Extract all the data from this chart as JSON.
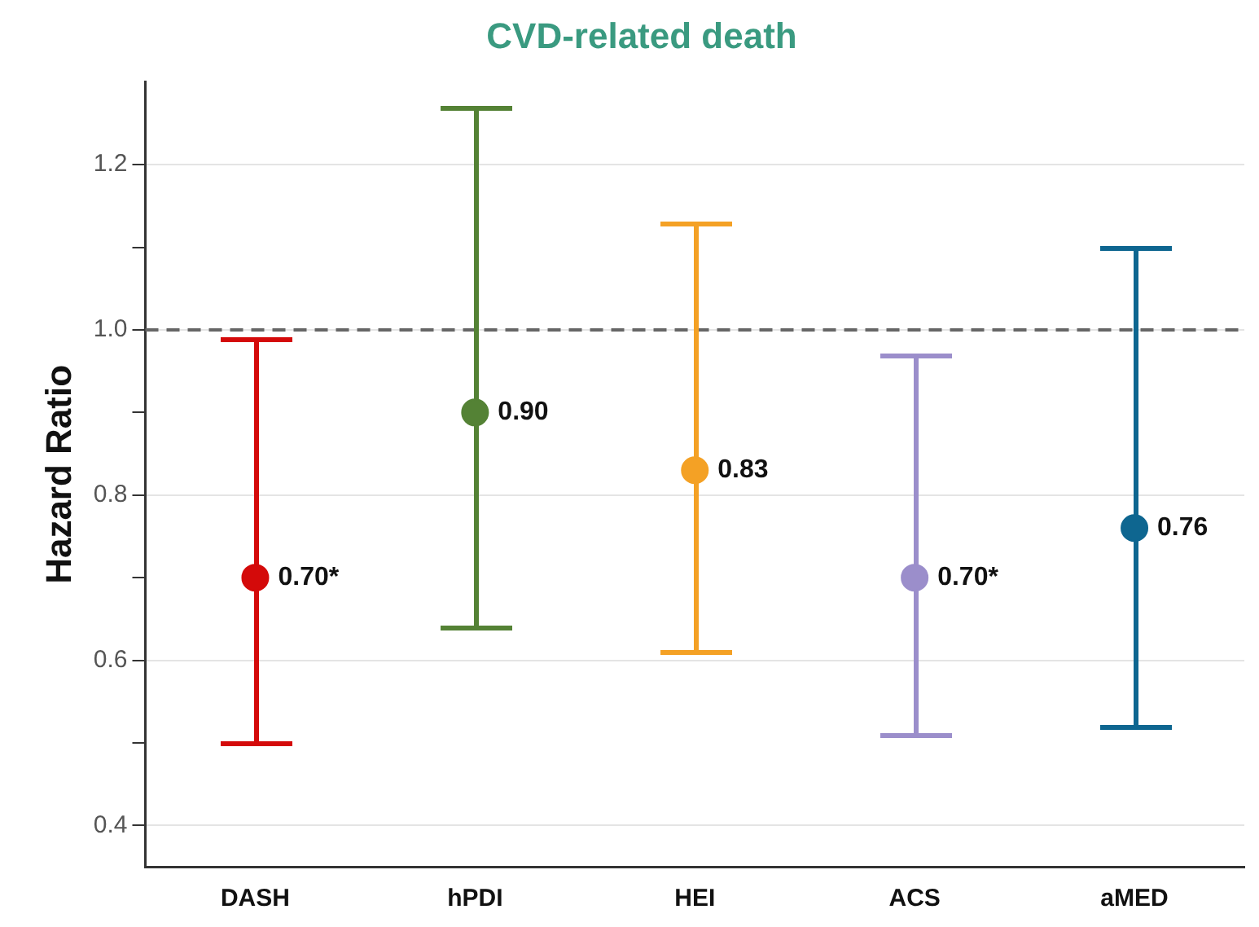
{
  "chart_data": {
    "type": "scatter",
    "title": "CVD-related death",
    "ylabel": "Hazard Ratio",
    "categories": [
      "DASH",
      "hPDI",
      "HEI",
      "ACS",
      "aMED"
    ],
    "values": [
      0.7,
      0.9,
      0.83,
      0.7,
      0.76
    ],
    "errors": [
      [
        0.5,
        0.99
      ],
      [
        0.64,
        1.27
      ],
      [
        0.61,
        1.13
      ],
      [
        0.51,
        0.97
      ],
      [
        0.52,
        1.1
      ]
    ],
    "value_labels": [
      "0.70*",
      "0.90",
      "0.83",
      "0.70*",
      "0.76"
    ],
    "colors": [
      "#d40a0a",
      "#548235",
      "#f4a125",
      "#9b8ecb",
      "#0e6690"
    ],
    "ylim": [
      0.35,
      1.3
    ],
    "yticks": [
      {
        "value": 0.4,
        "label": "0.4"
      },
      {
        "value": 0.5,
        "label": null
      },
      {
        "value": 0.6,
        "label": "0.6"
      },
      {
        "value": 0.7,
        "label": null
      },
      {
        "value": 0.8,
        "label": "0.8"
      },
      {
        "value": 0.9,
        "label": null
      },
      {
        "value": 1.0,
        "label": "1.0"
      },
      {
        "value": 1.1,
        "label": null
      },
      {
        "value": 1.2,
        "label": "1.2"
      }
    ],
    "ref_lines": [
      {
        "axis": "y",
        "value": 1.0,
        "color": "#666666",
        "line_style": "dashed"
      }
    ],
    "grid": "y",
    "legend": false,
    "marker": "circle"
  }
}
